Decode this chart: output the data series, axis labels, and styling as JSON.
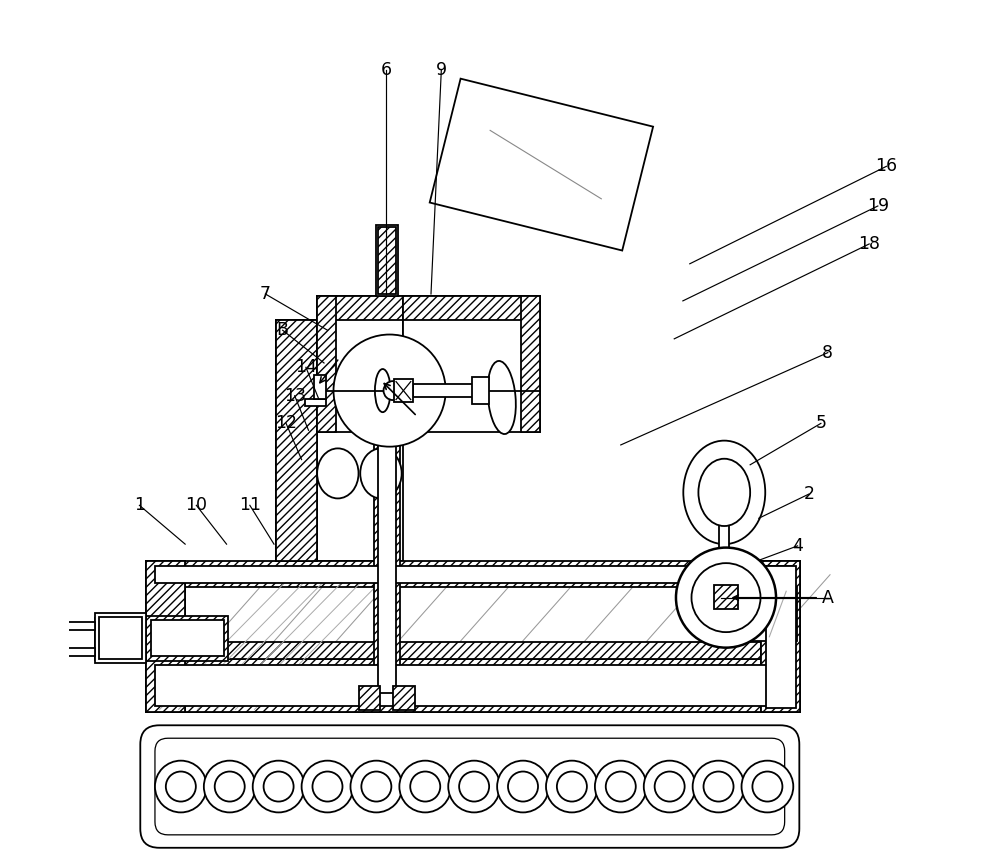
{
  "bg": "#ffffff",
  "lc": "#000000",
  "lw": 1.3,
  "fw": 10.0,
  "fh": 8.64,
  "annotations": [
    [
      "1",
      [
        0.082,
        0.415
      ],
      [
        0.135,
        0.37
      ]
    ],
    [
      "10",
      [
        0.148,
        0.415
      ],
      [
        0.183,
        0.37
      ]
    ],
    [
      "11",
      [
        0.21,
        0.415
      ],
      [
        0.238,
        0.37
      ]
    ],
    [
      "12",
      [
        0.252,
        0.51
      ],
      [
        0.27,
        0.468
      ]
    ],
    [
      "13",
      [
        0.262,
        0.542
      ],
      [
        0.278,
        0.502
      ]
    ],
    [
      "14",
      [
        0.275,
        0.575
      ],
      [
        0.29,
        0.538
      ]
    ],
    [
      "B",
      [
        0.248,
        0.618
      ],
      [
        0.296,
        0.58
      ]
    ],
    [
      "7",
      [
        0.228,
        0.66
      ],
      [
        0.3,
        0.618
      ]
    ],
    [
      "6",
      [
        0.368,
        0.92
      ],
      [
        0.368,
        0.66
      ]
    ],
    [
      "9",
      [
        0.432,
        0.92
      ],
      [
        0.42,
        0.66
      ]
    ],
    [
      "16",
      [
        0.948,
        0.808
      ],
      [
        0.72,
        0.695
      ]
    ],
    [
      "19",
      [
        0.938,
        0.762
      ],
      [
        0.712,
        0.652
      ]
    ],
    [
      "18",
      [
        0.928,
        0.718
      ],
      [
        0.702,
        0.608
      ]
    ],
    [
      "8",
      [
        0.88,
        0.592
      ],
      [
        0.64,
        0.485
      ]
    ],
    [
      "5",
      [
        0.872,
        0.51
      ],
      [
        0.79,
        0.462
      ]
    ],
    [
      "2",
      [
        0.858,
        0.428
      ],
      [
        0.8,
        0.4
      ]
    ],
    [
      "4",
      [
        0.845,
        0.368
      ],
      [
        0.802,
        0.352
      ]
    ],
    [
      "A",
      [
        0.88,
        0.308
      ],
      [
        0.756,
        0.308
      ]
    ]
  ]
}
